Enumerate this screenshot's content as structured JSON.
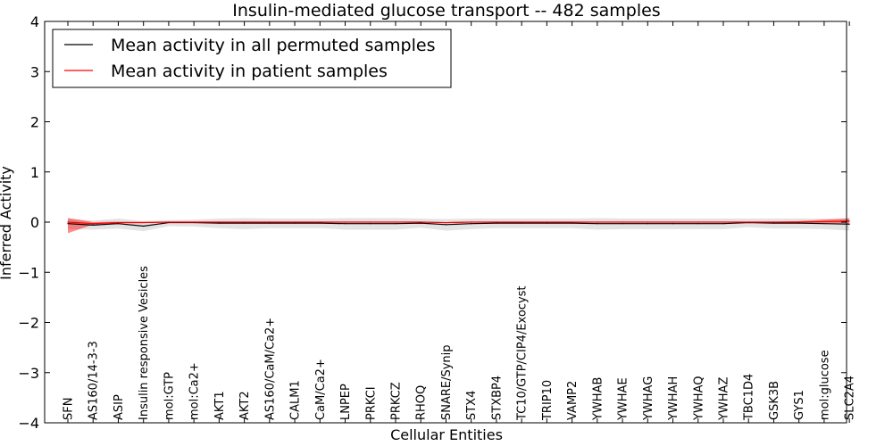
{
  "chart_data": {
    "type": "line",
    "title": "Insulin-mediated glucose transport -- 482 samples",
    "xlabel": "Cellular Entities",
    "ylabel": "Inferred Activity",
    "ylim": [
      -4,
      4
    ],
    "yticks": [
      4,
      3,
      2,
      1,
      0,
      -1,
      -2,
      -3,
      -4
    ],
    "ytick_labels": [
      "4",
      "3",
      "2",
      "1",
      "0",
      "−1",
      "−2",
      "−3",
      "−4"
    ],
    "grid": false,
    "legend_position": "top-left",
    "categories": [
      "SFN",
      "AS160/14-3-3",
      "ASIP",
      "Insulin responsive Vesicles",
      "mol:GTP",
      "mol:Ca2+",
      "AKT1",
      "AKT2",
      "AS160/CaM/Ca2+",
      "CALM1",
      "CaM/Ca2+",
      "LNPEP",
      "PRKCI",
      "PRKCZ",
      "RHOQ",
      "SNARE/Synip",
      "STX4",
      "STXBP4",
      "TC10/GTP/CIP4/Exocyst",
      "TRIP10",
      "VAMP2",
      "YWHAB",
      "YWHAE",
      "YWHAG",
      "YWHAH",
      "YWHAQ",
      "YWHAZ",
      "TBC1D4",
      "GSK3B",
      "GYS1",
      "mol:glucose",
      "SLC2A4"
    ],
    "series": [
      {
        "name": "Mean activity in all permuted samples",
        "color": "#000000",
        "band_color": "#808080",
        "values": [
          -0.03,
          -0.06,
          -0.03,
          -0.08,
          -0.01,
          -0.01,
          -0.02,
          -0.02,
          -0.02,
          -0.02,
          -0.02,
          -0.03,
          -0.03,
          -0.03,
          -0.02,
          -0.05,
          -0.03,
          -0.02,
          -0.02,
          -0.02,
          -0.02,
          -0.03,
          -0.03,
          -0.03,
          -0.03,
          -0.03,
          -0.03,
          -0.01,
          -0.02,
          -0.02,
          -0.03,
          -0.04
        ],
        "lower": [
          -0.14,
          -0.15,
          -0.13,
          -0.18,
          -0.08,
          -0.09,
          -0.12,
          -0.14,
          -0.12,
          -0.12,
          -0.12,
          -0.15,
          -0.15,
          -0.15,
          -0.11,
          -0.17,
          -0.14,
          -0.12,
          -0.12,
          -0.12,
          -0.12,
          -0.15,
          -0.14,
          -0.14,
          -0.14,
          -0.14,
          -0.14,
          -0.1,
          -0.13,
          -0.13,
          -0.14,
          -0.17
        ],
        "upper": [
          0.07,
          0.03,
          0.07,
          0.02,
          0.04,
          0.05,
          0.07,
          0.08,
          0.07,
          0.07,
          0.07,
          0.08,
          0.08,
          0.08,
          0.07,
          0.06,
          0.07,
          0.07,
          0.07,
          0.07,
          0.07,
          0.08,
          0.07,
          0.07,
          0.07,
          0.07,
          0.07,
          0.07,
          0.07,
          0.07,
          0.07,
          0.08
        ]
      },
      {
        "name": "Mean activity in patient samples",
        "color": "#ff0000",
        "band_color": "#ff0000",
        "values": [
          0.0,
          -0.03,
          -0.01,
          -0.01,
          0.0,
          0.0,
          0.0,
          0.0,
          0.0,
          0.0,
          0.0,
          0.0,
          0.0,
          0.0,
          0.0,
          -0.01,
          0.0,
          0.0,
          0.0,
          0.0,
          0.0,
          0.0,
          0.0,
          0.0,
          0.0,
          0.0,
          0.0,
          0.0,
          0.0,
          0.0,
          0.01,
          0.02
        ],
        "lower": [
          -0.22,
          -0.05,
          -0.02,
          -0.02,
          -0.01,
          -0.01,
          -0.01,
          -0.01,
          -0.01,
          -0.01,
          -0.01,
          -0.01,
          -0.01,
          -0.01,
          -0.01,
          -0.02,
          -0.01,
          -0.01,
          -0.01,
          -0.01,
          -0.01,
          -0.01,
          -0.01,
          -0.01,
          -0.01,
          -0.01,
          -0.01,
          -0.01,
          -0.01,
          -0.01,
          -0.02,
          -0.02
        ],
        "upper": [
          0.08,
          0.0,
          0.01,
          0.01,
          0.01,
          0.01,
          0.01,
          0.01,
          0.01,
          0.01,
          0.01,
          0.01,
          0.01,
          0.01,
          0.01,
          0.0,
          0.01,
          0.01,
          0.01,
          0.01,
          0.01,
          0.01,
          0.01,
          0.01,
          0.01,
          0.01,
          0.01,
          0.01,
          0.01,
          0.02,
          0.05,
          0.07
        ]
      }
    ]
  }
}
